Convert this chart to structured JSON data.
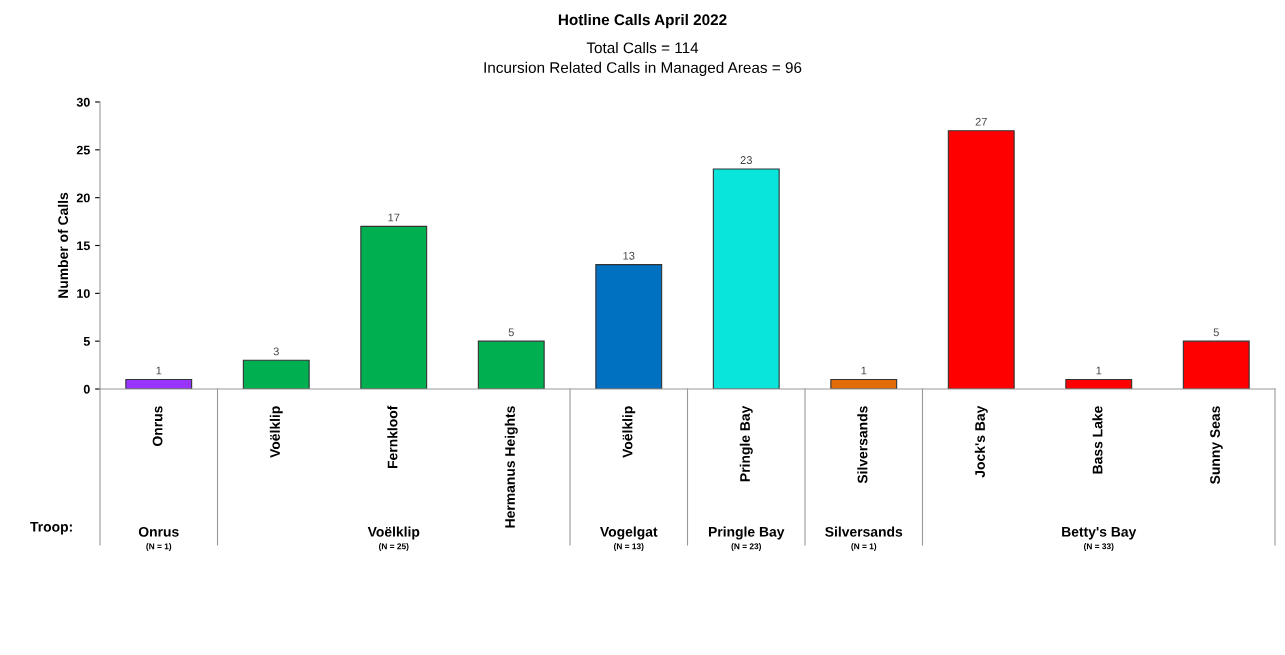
{
  "chart_data": {
    "type": "bar",
    "title": "Hotline Calls April 2022",
    "subtitle": "Total Calls = 114\nIncursion Related Calls in Managed Areas = 96",
    "ylabel": "Number of Calls",
    "categories": [
      "Onrus",
      "Voëlklip",
      "Fernkloof",
      "Hermanus Heights",
      "Voëlklip",
      "Pringle Bay",
      "Silversands",
      "Jock's Bay",
      "Bass Lake",
      "Sunny Seas"
    ],
    "values": [
      1,
      3,
      17,
      5,
      13,
      23,
      1,
      27,
      1,
      5
    ],
    "colors": [
      "#9933ff",
      "#00b050",
      "#00b050",
      "#00b050",
      "#0070c0",
      "#0ae5dc",
      "#e36c0a",
      "#ff0000",
      "#ff0000",
      "#ff0000"
    ],
    "ylim": [
      0,
      30
    ],
    "yticks": [
      0,
      5,
      10,
      15,
      20,
      25,
      30
    ],
    "grid": false,
    "data_labels": true,
    "annotations": [
      "Troop:",
      "Onrus",
      "(N = 1)",
      "Voëlklip",
      "(N = 25)",
      "Vogelgat",
      "(N = 13)",
      "Pringle Bay",
      "(N = 23)",
      "Silversands",
      "(N = 1)",
      "Betty's Bay",
      "(N = 33)"
    ]
  }
}
